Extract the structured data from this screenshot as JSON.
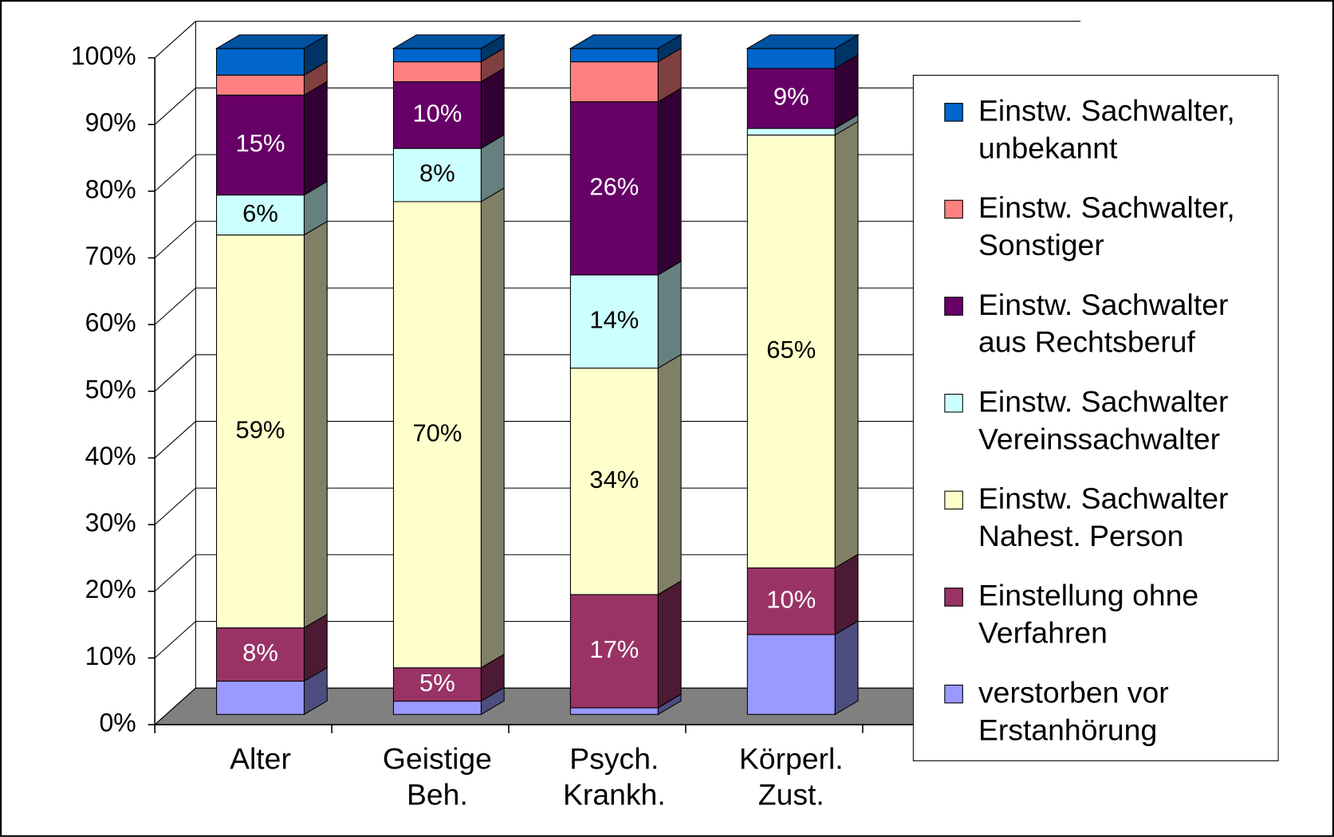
{
  "chart_data": {
    "type": "bar3d_stacked",
    "categories": [
      "Alter",
      "Geistige\nBeh.",
      "Psych.\nKrankh.",
      "Körperl.\nZust."
    ],
    "ylim": [
      0,
      100
    ],
    "yticks": [
      {
        "value": 0,
        "label": "0%"
      },
      {
        "value": 10,
        "label": "10%"
      },
      {
        "value": 20,
        "label": "20%"
      },
      {
        "value": 30,
        "label": "30%"
      },
      {
        "value": 40,
        "label": "40%"
      },
      {
        "value": 50,
        "label": "50%"
      },
      {
        "value": 60,
        "label": "60%"
      },
      {
        "value": 70,
        "label": "70%"
      },
      {
        "value": 80,
        "label": "80%"
      },
      {
        "value": 90,
        "label": "90%"
      },
      {
        "value": 100,
        "label": "100%"
      }
    ],
    "grid": true,
    "legend": "right",
    "series": [
      {
        "name": "verstorben vor\nErstanhörung",
        "color": "#9999ff",
        "values": [
          5,
          2,
          1,
          12
        ],
        "value_labels": [
          null,
          null,
          null,
          null
        ]
      },
      {
        "name": "Einstellung ohne\nVerfahren",
        "color": "#993366",
        "values": [
          8,
          5,
          17,
          10
        ],
        "value_labels": [
          "8%",
          "5%",
          "17%",
          "10%"
        ]
      },
      {
        "name": "Einstw. Sachwalter\nNahest. Person",
        "color": "#ffffcc",
        "values": [
          59,
          70,
          34,
          65
        ],
        "value_labels": [
          "59%",
          "70%",
          "34%",
          "65%"
        ]
      },
      {
        "name": "Einstw. Sachwalter\nVereinssachwalter",
        "color": "#ccffff",
        "values": [
          6,
          8,
          14,
          1
        ],
        "value_labels": [
          "6%",
          "8%",
          "14%",
          null
        ]
      },
      {
        "name": "Einstw. Sachwalter\naus Rechtsberuf",
        "color": "#660066",
        "values": [
          15,
          10,
          26,
          9
        ],
        "value_labels": [
          "15%",
          "10%",
          "26%",
          "9%"
        ]
      },
      {
        "name": "Einstw. Sachwalter,\nSonstiger",
        "color": "#ff8080",
        "values": [
          3,
          3,
          6,
          0
        ],
        "value_labels": [
          null,
          null,
          null,
          null
        ]
      },
      {
        "name": "Einstw. Sachwalter,\nunbekannt",
        "color": "#0066cc",
        "values": [
          4,
          2,
          2,
          3
        ],
        "value_labels": [
          null,
          null,
          null,
          null
        ]
      }
    ]
  }
}
